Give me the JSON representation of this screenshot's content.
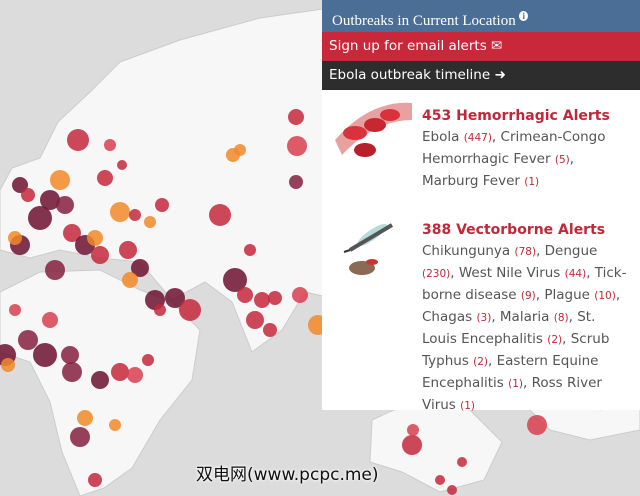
{
  "panel": {
    "header": {
      "title": "Outbreaks in Current Location",
      "info_icon": "i"
    },
    "links": [
      {
        "label": "Sign up for email alerts"
      },
      {
        "label": "Ebola outbreak timeline"
      }
    ],
    "sections": [
      {
        "title": "453 Hemorrhagic Alerts",
        "items": [
          {
            "name": "Ebola",
            "count": "(447)"
          },
          {
            "name": "Crimean-Congo Hemorrhagic Fever",
            "count": "(5)"
          },
          {
            "name": "Marburg Fever",
            "count": "(1)"
          }
        ]
      },
      {
        "title": "388 Vectorborne Alerts",
        "items": [
          {
            "name": "Chikungunya",
            "count": "(78)"
          },
          {
            "name": "Dengue",
            "count": "(230)"
          },
          {
            "name": "West Nile Virus",
            "count": "(44)"
          },
          {
            "name": "Tick-borne disease",
            "count": "(9)"
          },
          {
            "name": "Plague",
            "count": "(10)"
          },
          {
            "name": "Chagas",
            "count": "(3)"
          },
          {
            "name": "Malaria",
            "count": "(8)"
          },
          {
            "name": "St. Louis Encephalitis",
            "count": "(2)"
          },
          {
            "name": "Scrub Typhus",
            "count": "(2)"
          },
          {
            "name": "Eastern Equine Encephalitis",
            "count": "(1)"
          },
          {
            "name": "Ross River Virus",
            "count": "(1)"
          }
        ]
      }
    ]
  },
  "watermark": "双电网(www.pcpc.me)"
}
